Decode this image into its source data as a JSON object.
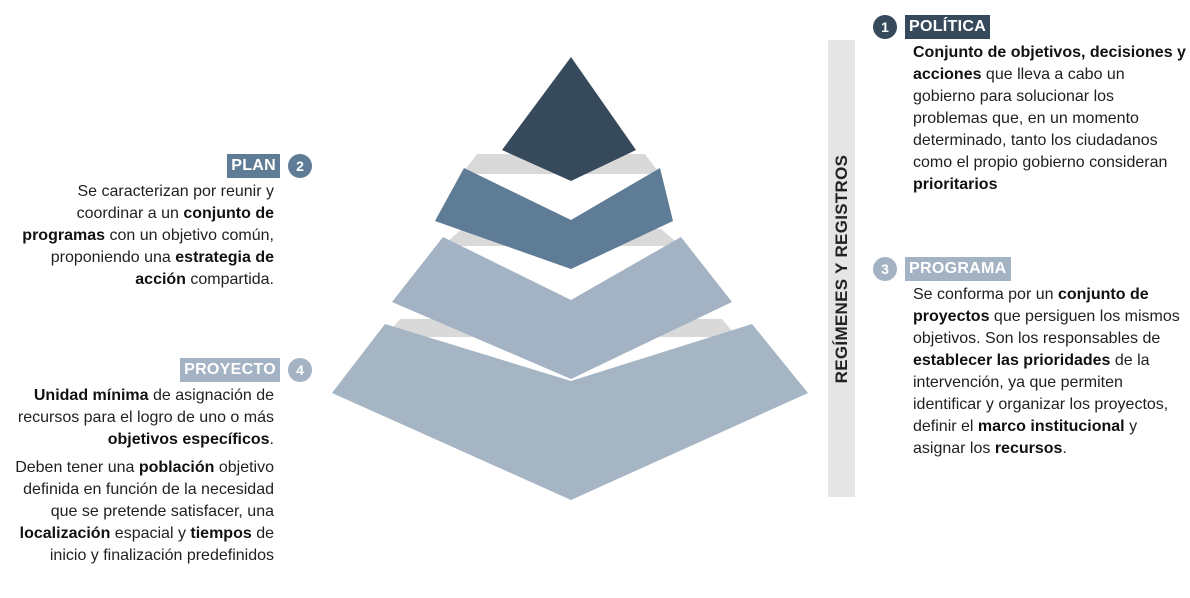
{
  "bar": {
    "label": "REGÍMENES Y REGISTROS"
  },
  "colors": {
    "level1": "#364a5c",
    "level2": "#5f7c96",
    "level3": "#a3b3c4",
    "level4": "#a5b5c3",
    "divider": "#d9d9d9",
    "dark_badge": "#364a5c",
    "mid_badge": "#5f7c96",
    "light_badge": "#a3b3c4"
  },
  "politica": {
    "number": "1",
    "title": "POLÍTICA",
    "segments": [
      {
        "t": "Conjunto de objetivos, decisiones y acciones",
        "b": true
      },
      {
        "t": " que lleva a cabo un gobierno para solucionar los problemas que, en un momento determinado, tanto los ciudadanos como el propio gobierno consideran ",
        "b": false
      },
      {
        "t": "prioritarios",
        "b": true
      }
    ]
  },
  "plan": {
    "number": "2",
    "title": "PLAN",
    "segments": [
      {
        "t": "Se caracterizan por reunir y coordinar a un ",
        "b": false
      },
      {
        "t": "conjunto de programas",
        "b": true
      },
      {
        "t": " con un objetivo común, proponiendo una ",
        "b": false
      },
      {
        "t": "estrategia de acción",
        "b": true
      },
      {
        "t": " compartida.",
        "b": false
      }
    ]
  },
  "programa": {
    "number": "3",
    "title": "PROGRAMA",
    "segments": [
      {
        "t": "Se conforma por un ",
        "b": false
      },
      {
        "t": "conjunto de proyectos",
        "b": true
      },
      {
        "t": " que persiguen los mismos objetivos. Son los responsables de ",
        "b": false
      },
      {
        "t": "establecer las prioridades",
        "b": true
      },
      {
        "t": " de la intervención, ya que permiten identificar y organizar los proyectos, definir el ",
        "b": false
      },
      {
        "t": "marco institucional",
        "b": true
      },
      {
        "t": " y asignar los ",
        "b": false
      },
      {
        "t": "recursos",
        "b": true
      },
      {
        "t": ".",
        "b": false
      }
    ]
  },
  "proyecto": {
    "number": "4",
    "title": "PROYECTO",
    "paragraph1": [
      {
        "t": "Unidad mínima",
        "b": true
      },
      {
        "t": " de asignación de recursos para el logro de uno o más ",
        "b": false
      },
      {
        "t": "objetivos específicos",
        "b": true
      },
      {
        "t": ".",
        "b": false
      }
    ],
    "paragraph2": [
      {
        "t": "Deben tener una ",
        "b": false
      },
      {
        "t": "población",
        "b": true
      },
      {
        "t": " objetivo definida en función de la necesidad que se pretende satisfacer, una ",
        "b": false
      },
      {
        "t": "localización",
        "b": true
      },
      {
        "t": " espacial y ",
        "b": false
      },
      {
        "t": "tiempos",
        "b": true
      },
      {
        "t": " de inicio y finalización predefinidos",
        "b": false
      }
    ]
  }
}
